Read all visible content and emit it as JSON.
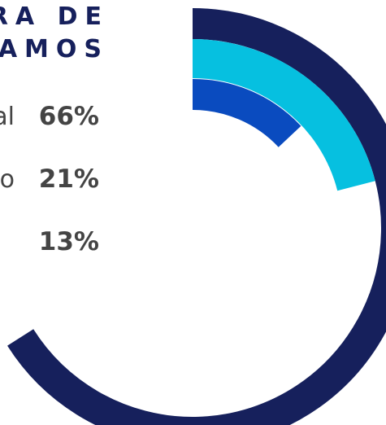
{
  "chart_data": {
    "type": "radial_bar",
    "title": [
      "RA DE",
      "AMOS"
    ],
    "categories": [
      "al",
      "o",
      null
    ],
    "values": [
      66,
      21,
      13
    ],
    "value_labels": [
      "66%",
      "21%",
      "13%"
    ],
    "colors": [
      "#16205c",
      "#06c0e0",
      "#0a4bbf"
    ]
  }
}
